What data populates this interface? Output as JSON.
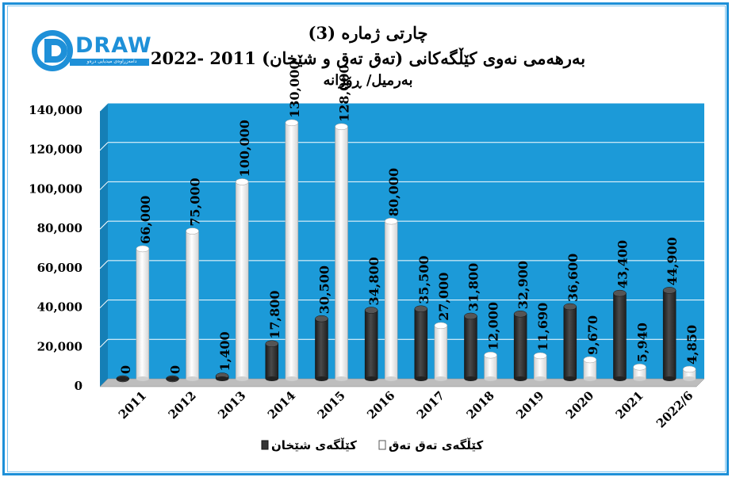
{
  "logo": {
    "text": "DRAW",
    "tagline": "دامەزراوەی میدیایی درەو"
  },
  "chart_data": {
    "type": "bar",
    "title_lines": [
      "چارتی ژمارە (3)",
      "بەرهەمی نەوی کێڵگەکانی (تەق تەق و شێخان) 2011 -2022",
      "بەرمیل/ ڕۆژانە"
    ],
    "categories": [
      "2011",
      "2012",
      "2013",
      "2014",
      "2015",
      "2016",
      "2017",
      "2018",
      "2019",
      "2020",
      "2021",
      "2022/6"
    ],
    "series": [
      {
        "name": "کێڵگەی شێخان",
        "color": "#333333",
        "values": [
          0,
          0,
          1400,
          17800,
          30500,
          34800,
          35500,
          31800,
          32900,
          36600,
          43400,
          44900
        ],
        "labels": [
          "0",
          "0",
          "1,400",
          "17,800",
          "30,500",
          "34,800",
          "35,500",
          "31,800",
          "32,900",
          "36,600",
          "43,400",
          "44,900"
        ]
      },
      {
        "name": "کێڵگەی تەق تەق",
        "color": "#f2f2f2",
        "values": [
          66000,
          75000,
          100000,
          130000,
          128000,
          80000,
          27000,
          12000,
          11690,
          9670,
          5940,
          4850
        ],
        "labels": [
          "66,000",
          "75,000",
          "100,000",
          "130,000",
          "128,000",
          "80,000",
          "27,000",
          "12,000",
          "11,690",
          "9,670",
          "5,940",
          "4,850"
        ]
      }
    ],
    "ylim": [
      0,
      140000
    ],
    "yticks": [
      0,
      20000,
      40000,
      60000,
      80000,
      100000,
      120000,
      140000
    ],
    "ytick_labels": [
      "0",
      "20,000",
      "40,000",
      "60,000",
      "80,000",
      "100,000",
      "120,000",
      "140,000"
    ],
    "grid": true,
    "legend": "bottom",
    "plot_color": "#1c9ad8"
  }
}
